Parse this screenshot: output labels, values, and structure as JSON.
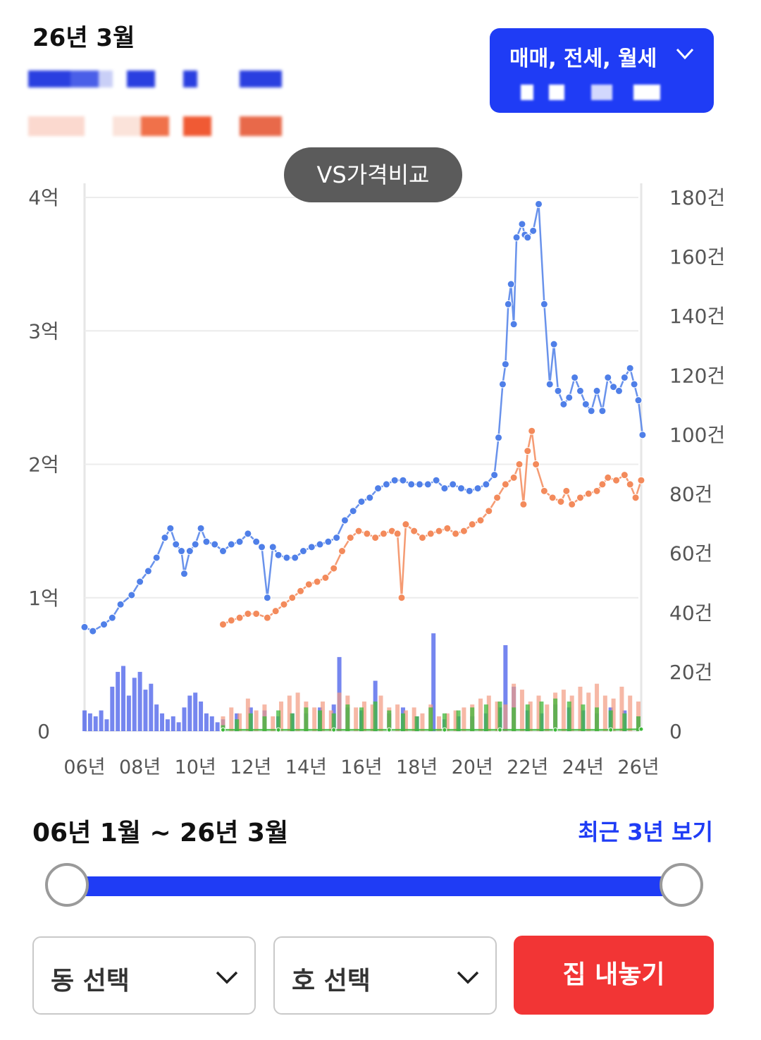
{
  "header": {
    "date": "26년 3월"
  },
  "type_select": {
    "label": "매매, 전세, 월세"
  },
  "vs_button": {
    "label": "VS가격비교"
  },
  "colors": {
    "blue": "#1f3cf5",
    "sale": "#4f7fe8",
    "jeonse": "#f38a5b",
    "monthly": "#3db83a",
    "red": "#f23535"
  },
  "chart_data": {
    "type": "line",
    "x_axis": {
      "ticks": [
        "06년",
        "08년",
        "10년",
        "12년",
        "14년",
        "16년",
        "18년",
        "20년",
        "22년",
        "24년",
        "26년"
      ]
    },
    "y_left": {
      "ticks": [
        "0",
        "1억",
        "2억",
        "3억",
        "4억"
      ],
      "range": [
        0,
        4
      ]
    },
    "y_right": {
      "ticks": [
        "0",
        "20건",
        "40건",
        "60건",
        "80건",
        "100건",
        "120건",
        "140건",
        "160건",
        "180건"
      ],
      "range": [
        0,
        180
      ]
    },
    "series": [
      {
        "key": "sale",
        "color": "#4f7fe8",
        "points": [
          [
            2006.0,
            0.78
          ],
          [
            2006.3,
            0.75
          ],
          [
            2006.7,
            0.8
          ],
          [
            2007.0,
            0.85
          ],
          [
            2007.3,
            0.95
          ],
          [
            2007.7,
            1.02
          ],
          [
            2008.0,
            1.12
          ],
          [
            2008.3,
            1.2
          ],
          [
            2008.6,
            1.3
          ],
          [
            2008.9,
            1.45
          ],
          [
            2009.1,
            1.52
          ],
          [
            2009.3,
            1.4
          ],
          [
            2009.5,
            1.35
          ],
          [
            2009.6,
            1.18
          ],
          [
            2009.8,
            1.35
          ],
          [
            2010.0,
            1.4
          ],
          [
            2010.2,
            1.52
          ],
          [
            2010.4,
            1.42
          ],
          [
            2010.7,
            1.4
          ],
          [
            2011.0,
            1.35
          ],
          [
            2011.3,
            1.4
          ],
          [
            2011.6,
            1.42
          ],
          [
            2011.9,
            1.48
          ],
          [
            2012.2,
            1.42
          ],
          [
            2012.4,
            1.38
          ],
          [
            2012.6,
            1.0
          ],
          [
            2012.8,
            1.38
          ],
          [
            2013.0,
            1.32
          ],
          [
            2013.3,
            1.3
          ],
          [
            2013.6,
            1.3
          ],
          [
            2013.9,
            1.35
          ],
          [
            2014.2,
            1.38
          ],
          [
            2014.5,
            1.4
          ],
          [
            2014.8,
            1.42
          ],
          [
            2015.1,
            1.45
          ],
          [
            2015.4,
            1.58
          ],
          [
            2015.7,
            1.65
          ],
          [
            2016.0,
            1.72
          ],
          [
            2016.3,
            1.75
          ],
          [
            2016.6,
            1.82
          ],
          [
            2016.9,
            1.85
          ],
          [
            2017.2,
            1.88
          ],
          [
            2017.5,
            1.88
          ],
          [
            2017.8,
            1.85
          ],
          [
            2018.1,
            1.85
          ],
          [
            2018.4,
            1.85
          ],
          [
            2018.7,
            1.88
          ],
          [
            2019.0,
            1.82
          ],
          [
            2019.3,
            1.85
          ],
          [
            2019.6,
            1.82
          ],
          [
            2019.9,
            1.8
          ],
          [
            2020.2,
            1.82
          ],
          [
            2020.5,
            1.85
          ],
          [
            2020.8,
            1.92
          ],
          [
            2020.95,
            2.2
          ],
          [
            2021.1,
            2.6
          ],
          [
            2021.2,
            2.75
          ],
          [
            2021.3,
            3.2
          ],
          [
            2021.4,
            3.35
          ],
          [
            2021.5,
            3.05
          ],
          [
            2021.6,
            3.7
          ],
          [
            2021.8,
            3.8
          ],
          [
            2021.9,
            3.72
          ],
          [
            2022.0,
            3.7
          ],
          [
            2022.2,
            3.75
          ],
          [
            2022.4,
            3.95
          ],
          [
            2022.6,
            3.2
          ],
          [
            2022.8,
            2.6
          ],
          [
            2022.95,
            2.9
          ],
          [
            2023.1,
            2.55
          ],
          [
            2023.3,
            2.45
          ],
          [
            2023.5,
            2.5
          ],
          [
            2023.7,
            2.65
          ],
          [
            2023.9,
            2.55
          ],
          [
            2024.1,
            2.45
          ],
          [
            2024.3,
            2.4
          ],
          [
            2024.5,
            2.55
          ],
          [
            2024.7,
            2.4
          ],
          [
            2024.9,
            2.65
          ],
          [
            2025.1,
            2.58
          ],
          [
            2025.3,
            2.55
          ],
          [
            2025.5,
            2.65
          ],
          [
            2025.7,
            2.72
          ],
          [
            2025.85,
            2.6
          ],
          [
            2026.0,
            2.48
          ],
          [
            2026.15,
            2.22
          ]
        ]
      },
      {
        "key": "jeonse",
        "color": "#f38a5b",
        "points": [
          [
            2011.0,
            0.8
          ],
          [
            2011.3,
            0.83
          ],
          [
            2011.6,
            0.85
          ],
          [
            2011.9,
            0.88
          ],
          [
            2012.2,
            0.88
          ],
          [
            2012.6,
            0.85
          ],
          [
            2012.9,
            0.9
          ],
          [
            2013.2,
            0.95
          ],
          [
            2013.5,
            1.0
          ],
          [
            2013.8,
            1.05
          ],
          [
            2014.1,
            1.1
          ],
          [
            2014.4,
            1.12
          ],
          [
            2014.7,
            1.15
          ],
          [
            2015.0,
            1.22
          ],
          [
            2015.3,
            1.35
          ],
          [
            2015.6,
            1.45
          ],
          [
            2015.9,
            1.5
          ],
          [
            2016.2,
            1.48
          ],
          [
            2016.5,
            1.45
          ],
          [
            2016.8,
            1.48
          ],
          [
            2017.1,
            1.5
          ],
          [
            2017.3,
            1.48
          ],
          [
            2017.45,
            1.0
          ],
          [
            2017.6,
            1.55
          ],
          [
            2017.9,
            1.5
          ],
          [
            2018.2,
            1.45
          ],
          [
            2018.5,
            1.48
          ],
          [
            2018.8,
            1.5
          ],
          [
            2019.1,
            1.52
          ],
          [
            2019.4,
            1.48
          ],
          [
            2019.7,
            1.5
          ],
          [
            2020.0,
            1.55
          ],
          [
            2020.3,
            1.58
          ],
          [
            2020.6,
            1.65
          ],
          [
            2020.9,
            1.75
          ],
          [
            2021.2,
            1.85
          ],
          [
            2021.5,
            1.9
          ],
          [
            2021.7,
            2.0
          ],
          [
            2021.85,
            1.7
          ],
          [
            2022.0,
            2.1
          ],
          [
            2022.15,
            2.25
          ],
          [
            2022.3,
            2.0
          ],
          [
            2022.6,
            1.8
          ],
          [
            2022.9,
            1.75
          ],
          [
            2023.2,
            1.72
          ],
          [
            2023.4,
            1.8
          ],
          [
            2023.6,
            1.7
          ],
          [
            2023.9,
            1.75
          ],
          [
            2024.2,
            1.78
          ],
          [
            2024.5,
            1.8
          ],
          [
            2024.7,
            1.85
          ],
          [
            2024.9,
            1.9
          ],
          [
            2025.2,
            1.88
          ],
          [
            2025.5,
            1.92
          ],
          [
            2025.7,
            1.85
          ],
          [
            2025.9,
            1.75
          ],
          [
            2026.1,
            1.88
          ]
        ]
      },
      {
        "key": "monthly",
        "color": "#3db83a",
        "points": [
          [
            2011.0,
            0.01
          ],
          [
            2013.0,
            0.01
          ],
          [
            2015.0,
            0.01
          ],
          [
            2017.0,
            0.01
          ],
          [
            2019.0,
            0.01
          ],
          [
            2021.0,
            0.01
          ],
          [
            2023.0,
            0.01
          ],
          [
            2025.0,
            0.01
          ],
          [
            2026.1,
            0.015
          ]
        ]
      }
    ],
    "volume_bars": {
      "sale": [
        [
          2006.0,
          7
        ],
        [
          2006.2,
          6
        ],
        [
          2006.4,
          5
        ],
        [
          2006.6,
          7
        ],
        [
          2006.8,
          4
        ],
        [
          2007.0,
          15
        ],
        [
          2007.2,
          20
        ],
        [
          2007.4,
          22
        ],
        [
          2007.6,
          12
        ],
        [
          2007.8,
          18
        ],
        [
          2008.0,
          20
        ],
        [
          2008.2,
          14
        ],
        [
          2008.4,
          16
        ],
        [
          2008.6,
          9
        ],
        [
          2008.8,
          6
        ],
        [
          2009.0,
          4
        ],
        [
          2009.2,
          5
        ],
        [
          2009.4,
          3
        ],
        [
          2009.6,
          8
        ],
        [
          2009.8,
          12
        ],
        [
          2010.0,
          13
        ],
        [
          2010.2,
          10
        ],
        [
          2010.4,
          6
        ],
        [
          2010.6,
          5
        ],
        [
          2010.8,
          3
        ],
        [
          2011.0,
          4
        ],
        [
          2011.5,
          6
        ],
        [
          2012.0,
          8
        ],
        [
          2012.5,
          7
        ],
        [
          2013.0,
          5
        ],
        [
          2013.5,
          6
        ],
        [
          2014.0,
          6
        ],
        [
          2014.5,
          8
        ],
        [
          2015.0,
          9
        ],
        [
          2015.2,
          25
        ],
        [
          2015.5,
          8
        ],
        [
          2016.0,
          7
        ],
        [
          2016.5,
          17
        ],
        [
          2017.0,
          6
        ],
        [
          2017.5,
          8
        ],
        [
          2018.0,
          5
        ],
        [
          2018.6,
          33
        ],
        [
          2019.0,
          4
        ],
        [
          2019.5,
          5
        ],
        [
          2020.0,
          5
        ],
        [
          2020.5,
          6
        ],
        [
          2021.0,
          8
        ],
        [
          2021.2,
          29
        ],
        [
          2021.5,
          15
        ],
        [
          2022.0,
          7
        ],
        [
          2022.5,
          6
        ],
        [
          2023.0,
          9
        ],
        [
          2023.5,
          8
        ],
        [
          2024.0,
          7
        ],
        [
          2024.5,
          6
        ],
        [
          2025.0,
          8
        ],
        [
          2025.5,
          7
        ],
        [
          2026.0,
          5
        ]
      ],
      "jeonse": [
        [
          2011.0,
          5
        ],
        [
          2011.3,
          8
        ],
        [
          2011.6,
          6
        ],
        [
          2011.9,
          11
        ],
        [
          2012.2,
          7
        ],
        [
          2012.5,
          9
        ],
        [
          2012.8,
          5
        ],
        [
          2013.1,
          10
        ],
        [
          2013.4,
          12
        ],
        [
          2013.7,
          13
        ],
        [
          2014.0,
          10
        ],
        [
          2014.3,
          8
        ],
        [
          2014.6,
          10
        ],
        [
          2014.9,
          7
        ],
        [
          2015.2,
          13
        ],
        [
          2015.5,
          12
        ],
        [
          2015.8,
          8
        ],
        [
          2016.1,
          10
        ],
        [
          2016.4,
          9
        ],
        [
          2016.7,
          12
        ],
        [
          2017.0,
          8
        ],
        [
          2017.3,
          9
        ],
        [
          2017.6,
          7
        ],
        [
          2017.9,
          8
        ],
        [
          2018.2,
          6
        ],
        [
          2018.5,
          9
        ],
        [
          2018.8,
          5
        ],
        [
          2019.1,
          6
        ],
        [
          2019.4,
          7
        ],
        [
          2019.7,
          8
        ],
        [
          2020.0,
          9
        ],
        [
          2020.3,
          11
        ],
        [
          2020.6,
          12
        ],
        [
          2020.9,
          10
        ],
        [
          2021.2,
          9
        ],
        [
          2021.5,
          16
        ],
        [
          2021.8,
          14
        ],
        [
          2022.1,
          10
        ],
        [
          2022.4,
          12
        ],
        [
          2022.7,
          9
        ],
        [
          2023.0,
          13
        ],
        [
          2023.3,
          14
        ],
        [
          2023.6,
          12
        ],
        [
          2023.9,
          15
        ],
        [
          2024.2,
          13
        ],
        [
          2024.5,
          16
        ],
        [
          2024.8,
          12
        ],
        [
          2025.1,
          11
        ],
        [
          2025.4,
          15
        ],
        [
          2025.7,
          12
        ],
        [
          2026.0,
          10
        ]
      ],
      "monthly": [
        [
          2011.0,
          2
        ],
        [
          2011.5,
          4
        ],
        [
          2012.0,
          6
        ],
        [
          2012.5,
          5
        ],
        [
          2013.0,
          7
        ],
        [
          2013.5,
          6
        ],
        [
          2014.0,
          8
        ],
        [
          2014.5,
          7
        ],
        [
          2015.0,
          6
        ],
        [
          2015.5,
          9
        ],
        [
          2016.0,
          8
        ],
        [
          2016.5,
          10
        ],
        [
          2017.0,
          7
        ],
        [
          2017.5,
          6
        ],
        [
          2018.0,
          5
        ],
        [
          2018.5,
          8
        ],
        [
          2019.0,
          6
        ],
        [
          2019.5,
          7
        ],
        [
          2020.0,
          8
        ],
        [
          2020.5,
          9
        ],
        [
          2021.0,
          10
        ],
        [
          2021.5,
          8
        ],
        [
          2022.0,
          9
        ],
        [
          2022.5,
          10
        ],
        [
          2023.0,
          11
        ],
        [
          2023.5,
          10
        ],
        [
          2024.0,
          9
        ],
        [
          2024.5,
          8
        ],
        [
          2025.0,
          7
        ],
        [
          2025.5,
          6
        ],
        [
          2026.0,
          5
        ]
      ]
    }
  },
  "period": {
    "label": "06년 1월 ~ 26년 3월",
    "recent_link": "최근 3년 보기",
    "start_fraction": 0.0,
    "end_fraction": 1.0
  },
  "bottom": {
    "dong_select": "동 선택",
    "ho_select": "호 선택",
    "sell_button": "집 내놓기"
  }
}
